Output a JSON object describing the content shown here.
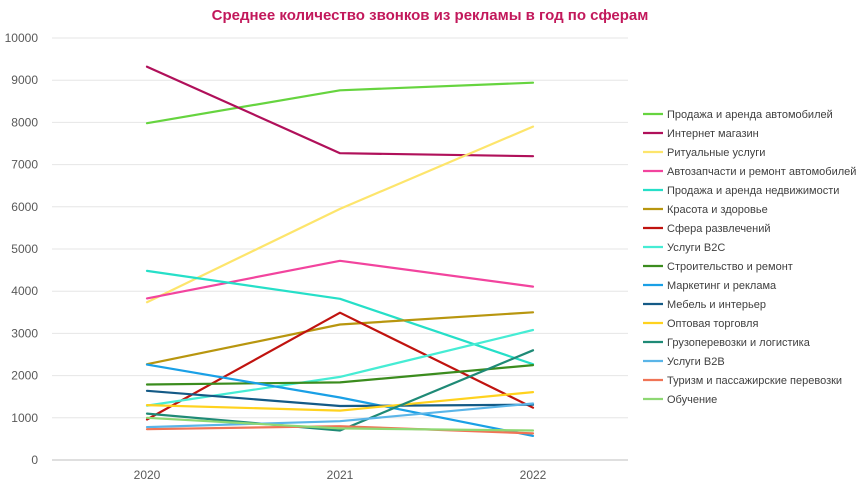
{
  "chart_data": {
    "type": "line",
    "title": "Среднее количество звонков из рекламы в год по сферам",
    "xlabel": "",
    "ylabel": "",
    "x": [
      "2020",
      "2021",
      "2022"
    ],
    "ylim": [
      0,
      10000
    ],
    "yticks": [
      0,
      1000,
      2000,
      3000,
      4000,
      5000,
      6000,
      7000,
      8000,
      9000,
      10000
    ],
    "grid": "horizontal",
    "legend_position": "right",
    "series": [
      {
        "name": "Продажа и аренда автомобилей",
        "color": "#66d43f",
        "values": [
          7980,
          8760,
          8940
        ]
      },
      {
        "name": "Интернет магазин",
        "color": "#b0105a",
        "values": [
          9320,
          7270,
          7200
        ]
      },
      {
        "name": "Ритуальные услуги",
        "color": "#fde56c",
        "values": [
          3740,
          5950,
          7900
        ]
      },
      {
        "name": "Автозапчасти и ремонт автомобилей",
        "color": "#f2449e",
        "values": [
          3830,
          4720,
          4110
        ]
      },
      {
        "name": "Продажа и аренда недвижимости",
        "color": "#26dfc8",
        "values": [
          4480,
          3820,
          2270
        ]
      },
      {
        "name": "Красота и здоровье",
        "color": "#b8960f",
        "values": [
          2270,
          3210,
          3500
        ]
      },
      {
        "name": "Сфера развлечений",
        "color": "#c0130f",
        "values": [
          960,
          3490,
          1240
        ]
      },
      {
        "name": "Услуги B2C",
        "color": "#46ecd4",
        "values": [
          1290,
          1970,
          3080
        ]
      },
      {
        "name": "Строительство и ремонт",
        "color": "#3b8c1e",
        "values": [
          1790,
          1840,
          2250
        ]
      },
      {
        "name": "Маркетинг и реклама",
        "color": "#1aa0e6",
        "values": [
          2260,
          1480,
          570
        ]
      },
      {
        "name": "Мебель и интерьер",
        "color": "#145a86",
        "values": [
          1640,
          1280,
          1310
        ]
      },
      {
        "name": "Оптовая торговля",
        "color": "#ffd21e",
        "values": [
          1300,
          1170,
          1610
        ]
      },
      {
        "name": "Грузоперевозки и логистика",
        "color": "#1f8a76",
        "values": [
          1100,
          700,
          2600
        ]
      },
      {
        "name": "Услуги B2B",
        "color": "#5ab5e8",
        "values": [
          780,
          920,
          1340
        ]
      },
      {
        "name": "Туризм и пассажирские перевозки",
        "color": "#f07456",
        "values": [
          730,
          800,
          630
        ]
      },
      {
        "name": "Обучение",
        "color": "#8ed873",
        "values": [
          1000,
          750,
          700
        ]
      }
    ]
  }
}
